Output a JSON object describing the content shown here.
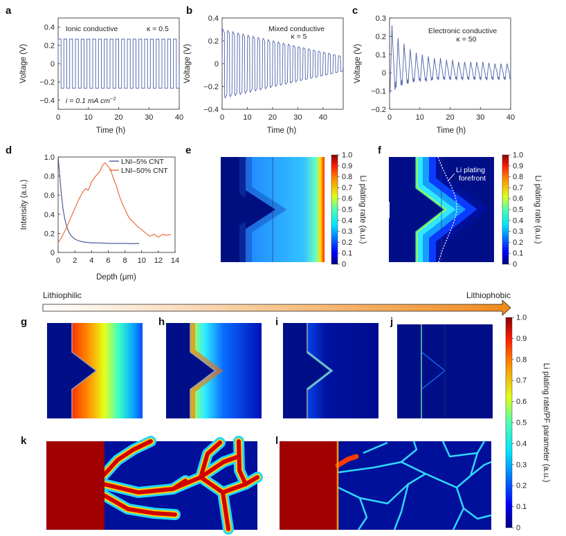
{
  "figure": {
    "arrow": {
      "left_label": "Lithiophilic",
      "right_label": "Lithiophobic"
    },
    "colorbars": {
      "e": {
        "ticks": [
          "1.0",
          "0.9",
          "0.8",
          "0.7",
          "0.6",
          "0.5",
          "0.4",
          "0.3",
          "0.2",
          "0.1",
          "0"
        ],
        "title": "Li plating rate (a.u.)"
      },
      "f": {
        "ticks": [
          "1.0",
          "0.9",
          "0.8",
          "0.7",
          "0.6",
          "0.5",
          "0.4",
          "0.3",
          "0.2",
          "0.1",
          "0"
        ],
        "title": "Li plating rate (a.u.)"
      },
      "main": {
        "ticks": [
          "1.0",
          "0.9",
          "0.8",
          "0.7",
          "0.6",
          "0.5",
          "0.4",
          "0.3",
          "0.2",
          "0.1",
          "0"
        ],
        "title": "Li plating rate/PF parameter (a.u.)"
      }
    },
    "panels": {
      "a": {
        "letter": "a",
        "label": "Ionic conductive",
        "kappa": "κ = 0.5",
        "current": "i = 0.1 mA cm",
        "current_sup": "−2"
      },
      "b": {
        "letter": "b",
        "label": "Mixed conductive",
        "kappa": "κ = 5"
      },
      "c": {
        "letter": "c",
        "label": "Electronic conductive",
        "kappa": "κ = 50"
      },
      "d": {
        "letter": "d"
      },
      "e": {
        "letter": "e"
      },
      "f": {
        "letter": "f",
        "annotation_line1": "Li plating",
        "annotation_line2": "forefront"
      },
      "g": {
        "letter": "g"
      },
      "h": {
        "letter": "h"
      },
      "i": {
        "letter": "i"
      },
      "j": {
        "letter": "j"
      },
      "k": {
        "letter": "k"
      },
      "l": {
        "letter": "l"
      }
    }
  },
  "chart_data": [
    {
      "id": "a",
      "type": "line",
      "title": "Ionic conductive",
      "xlabel": "Time (h)",
      "ylabel": "Voltage (V)",
      "xlim": [
        0,
        40
      ],
      "ylim": [
        -0.5,
        0.5
      ],
      "xticks": [
        0,
        10,
        20,
        30,
        40
      ],
      "yticks": [
        -0.4,
        -0.2,
        0,
        0.2,
        0.4
      ],
      "series": [
        {
          "name": "κ = 0.5",
          "shape": "square",
          "cycles": 21,
          "amplitude_start": 0.27,
          "amplitude_end": 0.27
        }
      ]
    },
    {
      "id": "b",
      "type": "line",
      "title": "Mixed conductive",
      "xlabel": "Time (h)",
      "ylabel": "Voltage (V)",
      "xlim": [
        0,
        48
      ],
      "ylim": [
        -0.4,
        0.4
      ],
      "xticks": [
        0,
        10,
        20,
        30,
        40
      ],
      "yticks": [
        -0.4,
        -0.2,
        0,
        0.2,
        0.4
      ],
      "series": [
        {
          "name": "κ = 5",
          "shape": "square",
          "cycles": 24,
          "amplitude_start": 0.3,
          "amplitude_end": 0.07
        }
      ]
    },
    {
      "id": "c",
      "type": "line",
      "title": "Electronic conductive",
      "xlabel": "Time (h)",
      "ylabel": "Voltage (V)",
      "xlim": [
        0,
        40
      ],
      "ylim": [
        -0.2,
        0.3
      ],
      "xticks": [
        0,
        10,
        20,
        30,
        40
      ],
      "yticks": [
        -0.2,
        -0.1,
        0,
        0.1,
        0.2,
        0.3
      ],
      "series": [
        {
          "name": "κ = 50",
          "shape": "spike",
          "cycles": 20,
          "peaks": [
            0.26,
            0.19,
            0.16,
            0.13,
            0.11,
            0.1,
            0.09,
            0.08,
            0.08,
            0.07,
            0.07,
            0.06,
            0.06,
            0.06,
            0.06,
            0.06,
            0.055,
            0.05,
            0.05,
            0.05
          ],
          "troughs": [
            -0.11,
            -0.08,
            -0.07,
            -0.06,
            -0.05,
            -0.05,
            -0.05,
            -0.04,
            -0.04,
            -0.04,
            -0.04,
            -0.04,
            -0.04,
            -0.04,
            -0.04,
            -0.04,
            -0.04,
            -0.04,
            -0.04,
            -0.04
          ]
        }
      ]
    },
    {
      "id": "d",
      "type": "line",
      "xlabel": "Depth (μm)",
      "ylabel": "Intensity (a.u.)",
      "xlim": [
        0,
        14
      ],
      "ylim": [
        0,
        1.0
      ],
      "xticks": [
        0,
        2,
        4,
        6,
        8,
        10,
        12,
        14
      ],
      "yticks": [
        0,
        0.2,
        0.4,
        0.6,
        0.8,
        1.0
      ],
      "legend": "top-right",
      "series": [
        {
          "name": "LNI–5% CNT",
          "color": "#3c4f8f",
          "x": [
            0,
            0.2,
            0.4,
            0.6,
            0.8,
            1.0,
            1.3,
            1.6,
            2.0,
            2.5,
            3.0,
            4.0,
            5.0,
            6.0,
            7.0,
            8.0,
            9.0,
            9.7
          ],
          "y": [
            1.0,
            0.8,
            0.6,
            0.45,
            0.35,
            0.28,
            0.21,
            0.17,
            0.14,
            0.12,
            0.11,
            0.1,
            0.1,
            0.095,
            0.095,
            0.095,
            0.092,
            0.095
          ]
        },
        {
          "name": "LNI–50% CNT",
          "color": "#e8612c",
          "x": [
            0,
            0.5,
            1.0,
            1.5,
            2.0,
            2.5,
            3.0,
            3.3,
            3.6,
            4.0,
            4.5,
            5.0,
            5.3,
            5.6,
            6.0,
            6.3,
            6.6,
            7.0,
            7.3,
            7.6,
            8.0,
            8.5,
            9.0,
            9.5,
            10.0,
            10.5,
            11.0,
            11.5,
            12.0,
            12.5,
            13.0,
            13.5
          ],
          "y": [
            0.1,
            0.17,
            0.26,
            0.36,
            0.46,
            0.56,
            0.64,
            0.67,
            0.65,
            0.74,
            0.8,
            0.85,
            0.91,
            0.94,
            0.9,
            0.86,
            0.78,
            0.69,
            0.6,
            0.53,
            0.45,
            0.36,
            0.32,
            0.27,
            0.24,
            0.2,
            0.17,
            0.19,
            0.16,
            0.19,
            0.18,
            0.19
          ]
        }
      ]
    },
    {
      "id": "colormap-fields",
      "type": "heatmap",
      "colorbar_range": [
        0,
        1.0
      ],
      "panels": [
        "e",
        "f",
        "g",
        "h",
        "i",
        "j",
        "k",
        "l"
      ]
    }
  ]
}
